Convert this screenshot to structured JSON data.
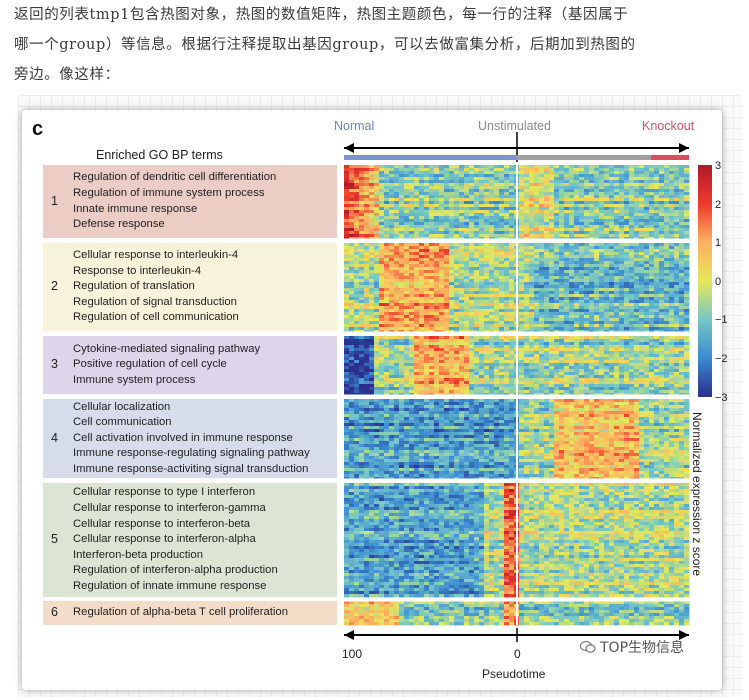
{
  "article": {
    "line1": "返回的列表tmp1包含热图对象，热图的数值矩阵，热图主题颜色，每一行的注释（基因属于",
    "line2": "哪一个group）等信息。根据行注释提取出基因group，可以去做富集分析，后期加到热图的",
    "line3": "旁边。像这样："
  },
  "figure": {
    "panel_letter": "c",
    "go_title": "Enriched GO BP terms",
    "conditions": {
      "normal": "Normal",
      "unstimulated": "Unstimulated",
      "knockout": "Knockout"
    },
    "colors": {
      "normal": "#6a86c4",
      "unstimulated": "#8c8c8c",
      "knockout": "#d6505e"
    }
  },
  "groups": [
    {
      "num": "1",
      "bg": "#eccdc6",
      "terms": [
        "Regulation of dendritic cell differentiation",
        "Regulation of immune system process",
        "Innate immune response",
        "Defense response"
      ]
    },
    {
      "num": "2",
      "bg": "#f7f3da",
      "terms": [
        "Cellular response to interleukin-4",
        "Response to interleukin-4",
        "Regulation of translation",
        "Regulation of signal transduction",
        "Regulation of cell communication"
      ]
    },
    {
      "num": "3",
      "bg": "#ddd6ea",
      "terms": [
        "Cytokine-mediated signaling pathway",
        "Positive regulation of cell cycle",
        "Immune system process"
      ]
    },
    {
      "num": "4",
      "bg": "#d7dceb",
      "terms": [
        "Cellular localization",
        "Cell communication",
        "Cell activation involved in immune response",
        "Immune response-regulating signaling pathway",
        "Immune response-activiting signal transduction"
      ]
    },
    {
      "num": "5",
      "bg": "#dce5d3",
      "terms": [
        "Cellular response to type I interferon",
        "Cellular response to interferon-gamma",
        "Cellular response to interferon-beta",
        "Cellular response to interferon-alpha",
        "Interferon-beta production",
        "Regulation of interferon-alpha production",
        "Regulation of innate immune response"
      ]
    },
    {
      "num": "6",
      "bg": "#f3dcc8",
      "terms": [
        "Regulation of alpha-beta T cell proliferation"
      ]
    }
  ],
  "x_axis": {
    "left_tick": "100",
    "mid_tick": "0",
    "label": "Pseudotime"
  },
  "colorbar": {
    "ticks": [
      "3",
      "2",
      "1",
      "0",
      "−1",
      "−2",
      "−3"
    ],
    "label": "Normalized expression z score"
  },
  "watermark": "TOP生物信息"
}
